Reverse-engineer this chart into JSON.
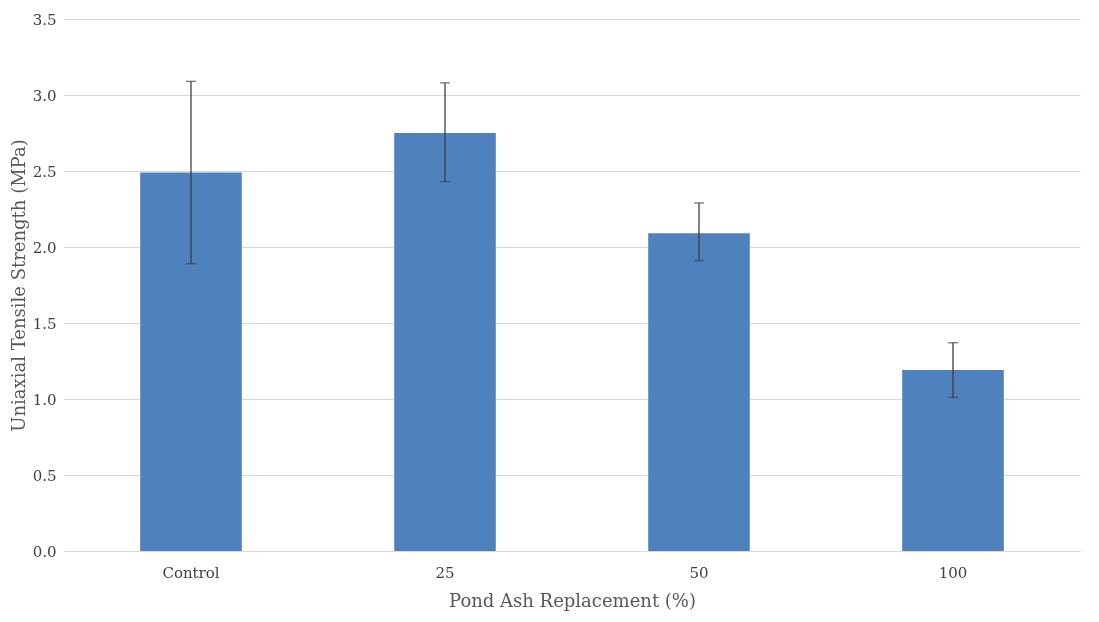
{
  "chart_data": {
    "type": "bar",
    "xlabel": "Pond Ash Replacement (%)",
    "ylabel": "Uniaxial Tensile Strength (MPa)",
    "categories": [
      "Control",
      "25",
      "50",
      "100"
    ],
    "series": [
      {
        "color": "#4f81bd",
        "values": [
          2.49,
          2.75,
          2.09,
          1.19
        ],
        "errors": [
          [
            1.89,
            3.09
          ],
          [
            2.43,
            3.08
          ],
          [
            1.91,
            2.29
          ],
          [
            1.01,
            1.37
          ]
        ]
      }
    ],
    "ylim": [
      0,
      3.5
    ],
    "yticks": [
      {
        "value": 0,
        "label": "0.0"
      },
      {
        "value": 0.5,
        "label": "0.5"
      },
      {
        "value": 1,
        "label": "1.0"
      },
      {
        "value": 1.5,
        "label": "1.5"
      },
      {
        "value": 2,
        "label": "2.0"
      },
      {
        "value": 2.5,
        "label": "2.5"
      },
      {
        "value": 3,
        "label": "3.0"
      },
      {
        "value": 3.5,
        "label": "3.5"
      }
    ],
    "grid": "y"
  }
}
